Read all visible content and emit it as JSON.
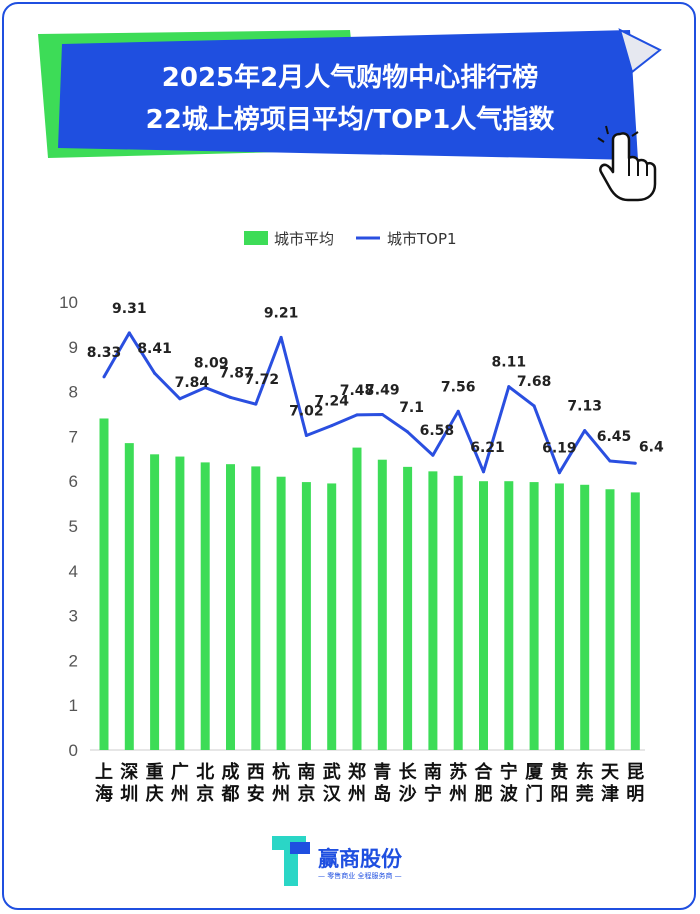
{
  "title": {
    "line1": "2025年2月人气购物中心排行榜",
    "line2": "22城上榜项目平均/TOP1人气指数"
  },
  "legend": {
    "avg_label": "城市平均",
    "top1_label": "城市TOP1"
  },
  "colors": {
    "bar": "#3ddc57",
    "line": "#2a4fe0",
    "title_bg": "#1f4fe0",
    "title_accent": "#3ddc57"
  },
  "chart_data": {
    "type": "bar",
    "categories": [
      "上海",
      "深圳",
      "重庆",
      "广州",
      "北京",
      "成都",
      "西安",
      "杭州",
      "南京",
      "武汉",
      "郑州",
      "青岛",
      "长沙",
      "南宁",
      "苏州",
      "合肥",
      "宁波",
      "厦门",
      "贵阳",
      "东莞",
      "天津",
      "昆明"
    ],
    "series": [
      {
        "name": "城市平均",
        "type": "bar",
        "values": [
          7.4,
          6.85,
          6.6,
          6.55,
          6.42,
          6.38,
          6.33,
          6.1,
          5.98,
          5.95,
          6.75,
          6.48,
          6.32,
          6.22,
          6.12,
          6.0,
          6.0,
          5.98,
          5.95,
          5.92,
          5.82,
          5.75
        ]
      },
      {
        "name": "城市TOP1",
        "type": "line",
        "values": [
          8.33,
          9.31,
          8.41,
          7.84,
          8.09,
          7.87,
          7.72,
          9.21,
          7.02,
          7.24,
          7.48,
          7.49,
          7.1,
          6.58,
          7.56,
          6.21,
          8.11,
          7.68,
          6.19,
          7.13,
          6.45,
          6.4
        ],
        "labels": [
          "8.33",
          "9.31",
          "8.41",
          "7.84",
          "8.09",
          "7.87",
          "7.72",
          "9.21",
          "7.02",
          "7.24",
          "7.48",
          "7.49",
          "7.1",
          "6.58",
          "7.56",
          "6.21",
          "8.11",
          "7.68",
          "6.19",
          "7.13",
          "6.45",
          "6.4"
        ]
      }
    ],
    "ylim": [
      0,
      10
    ],
    "yticks": [
      "0",
      "1",
      "2",
      "3",
      "4",
      "5",
      "6",
      "7",
      "8",
      "9",
      "10"
    ],
    "legend_position": "top-center",
    "grid": false
  },
  "logo": {
    "name": "赢商股份",
    "tagline": "— 零售商业 全程服务商 —"
  }
}
